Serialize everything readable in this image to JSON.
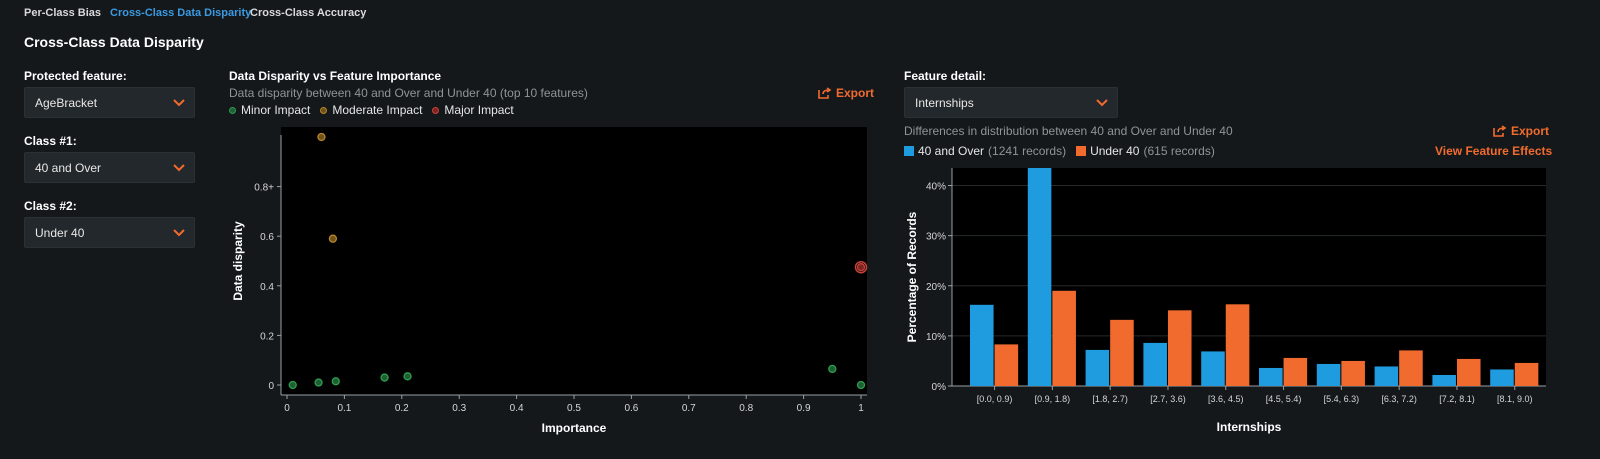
{
  "tabs": [
    {
      "label": "Per-Class Bias",
      "active": false
    },
    {
      "label": "Cross-Class Data Disparity",
      "active": true
    },
    {
      "label": "Cross-Class Accuracy",
      "active": false
    }
  ],
  "page_title": "Cross-Class Data Disparity",
  "controls": {
    "protected_label": "Protected feature:",
    "protected_value": "AgeBracket",
    "class1_label": "Class #1:",
    "class1_value": "40 and Over",
    "class2_label": "Class #2:",
    "class2_value": "Under 40"
  },
  "scatter_panel": {
    "title": "Data Disparity vs Feature Importance",
    "subtitle": "Data disparity between 40 and Over and Under 40 (top 10 features)",
    "export_label": "Export",
    "legend": [
      {
        "label": "Minor Impact",
        "color": "#2e9e4f"
      },
      {
        "label": "Moderate Impact",
        "color": "#b8862a"
      },
      {
        "label": "Major Impact",
        "color": "#c8413b"
      }
    ]
  },
  "detail_panel": {
    "label": "Feature detail:",
    "feature_value": "Internships",
    "subtitle": "Differences in distribution between 40 and Over and Under 40",
    "export_label": "Export",
    "effects_label": "View Feature Effects",
    "legend": [
      {
        "label": "40 and Over",
        "count": "(1241 records)",
        "color": "#1f9be0"
      },
      {
        "label": "Under 40",
        "count": "(615 records)",
        "color": "#f26b2e"
      }
    ]
  },
  "chart_data": [
    {
      "type": "scatter",
      "xlabel": "Importance",
      "ylabel": "Data disparity",
      "xlim": [
        0,
        1
      ],
      "ylim": [
        0,
        1
      ],
      "x_ticks": [
        "0",
        "0.1",
        "0.2",
        "0.3",
        "0.4",
        "0.5",
        "0.6",
        "0.7",
        "0.8",
        "0.9",
        "1"
      ],
      "y_ticks": [
        "0",
        "0.2",
        "0.4",
        "0.6",
        "0.8+"
      ],
      "points": [
        {
          "x": 0.01,
          "y": 0.0,
          "impact": "Minor Impact"
        },
        {
          "x": 0.055,
          "y": 0.01,
          "impact": "Minor Impact"
        },
        {
          "x": 0.085,
          "y": 0.015,
          "impact": "Minor Impact"
        },
        {
          "x": 0.17,
          "y": 0.03,
          "impact": "Minor Impact"
        },
        {
          "x": 0.21,
          "y": 0.035,
          "impact": "Minor Impact"
        },
        {
          "x": 0.95,
          "y": 0.065,
          "impact": "Minor Impact"
        },
        {
          "x": 1.0,
          "y": 0.0,
          "impact": "Minor Impact"
        },
        {
          "x": 0.06,
          "y": 1.0,
          "impact": "Moderate Impact"
        },
        {
          "x": 0.08,
          "y": 0.59,
          "impact": "Moderate Impact"
        },
        {
          "x": 1.0,
          "y": 0.475,
          "impact": "Major Impact"
        }
      ]
    },
    {
      "type": "bar",
      "xlabel": "Internships",
      "ylabel": "Percentage of Records",
      "ylim": [
        0,
        43.5
      ],
      "y_ticks": [
        "0%",
        "10%",
        "20%",
        "30%",
        "40%"
      ],
      "categories": [
        "[0.0, 0.9)",
        "[0.9, 1.8)",
        "[1.8, 2.7)",
        "[2.7, 3.6)",
        "[3.6, 4.5)",
        "[4.5, 5.4)",
        "[5.4, 6.3)",
        "[6.3, 7.2)",
        "[7.2, 8.1)",
        "[8.1, 9.0)"
      ],
      "series": [
        {
          "name": "40 and Over",
          "values": [
            16.2,
            43.5,
            7.2,
            8.6,
            6.9,
            3.6,
            4.4,
            3.9,
            2.2,
            3.3
          ]
        },
        {
          "name": "Under 40",
          "values": [
            8.3,
            19.0,
            13.2,
            15.1,
            16.3,
            5.6,
            5.0,
            7.1,
            5.4,
            4.6
          ]
        }
      ]
    }
  ]
}
